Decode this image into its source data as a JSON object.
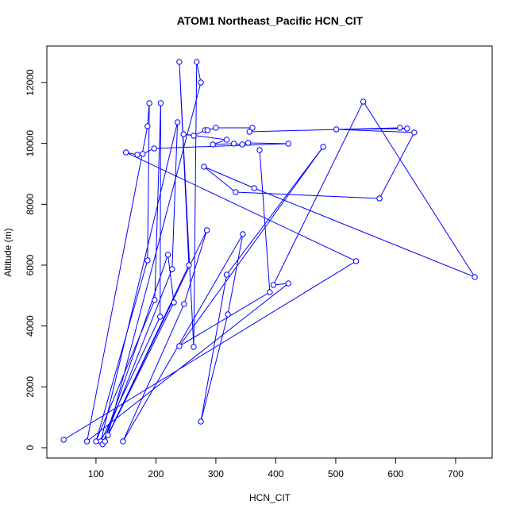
{
  "chart_data": {
    "type": "line",
    "markers": true,
    "color": "#0000ff",
    "title": "ATOM1 Northeast_Pacific HCN_CIT",
    "x_label": "HCN_CIT",
    "y_label": "Altitude (m)",
    "xlim": [
      18,
      761
    ],
    "ylim": [
      -339,
      13200
    ],
    "xticks": [
      100,
      200,
      300,
      400,
      500,
      600,
      700
    ],
    "yticks": [
      0,
      2000,
      4000,
      6000,
      8000,
      10000,
      12000
    ],
    "x": [
      46,
      534,
      150,
      169,
      178,
      197,
      421,
      354,
      344,
      330,
      295,
      318,
      246,
      263,
      282,
      286,
      300,
      361,
      356,
      607,
      619,
      501,
      631,
      573,
      333,
      280,
      364,
      732,
      546,
      396,
      421,
      85,
      186,
      189,
      186,
      100,
      198,
      208,
      207,
      108,
      236,
      227,
      111,
      220,
      230,
      115,
      255,
      239,
      263,
      268,
      275,
      120,
      285,
      247,
      145,
      345,
      320,
      275,
      318,
      479,
      239,
      390,
      373
    ],
    "values": [
      261,
      6131,
      9705,
      9627,
      9653,
      9836,
      9992,
      10018,
      9966,
      9992,
      9966,
      10123,
      10305,
      10253,
      10436,
      10436,
      10514,
      10514,
      10384,
      10514,
      10488,
      10462,
      10358,
      8192,
      8400,
      9235,
      8531,
      5609,
      11375,
      5348,
      5400,
      209,
      10566,
      11323,
      6157,
      209,
      4852,
      11323,
      4304,
      209,
      10697,
      5870,
      111,
      6340,
      4774,
      209,
      6000,
      12680,
      3313,
      12680,
      12001,
      417,
      7148,
      4722,
      209,
      7018,
      4383,
      861,
      5687,
      9888,
      3339,
      5113,
      9783
    ]
  }
}
